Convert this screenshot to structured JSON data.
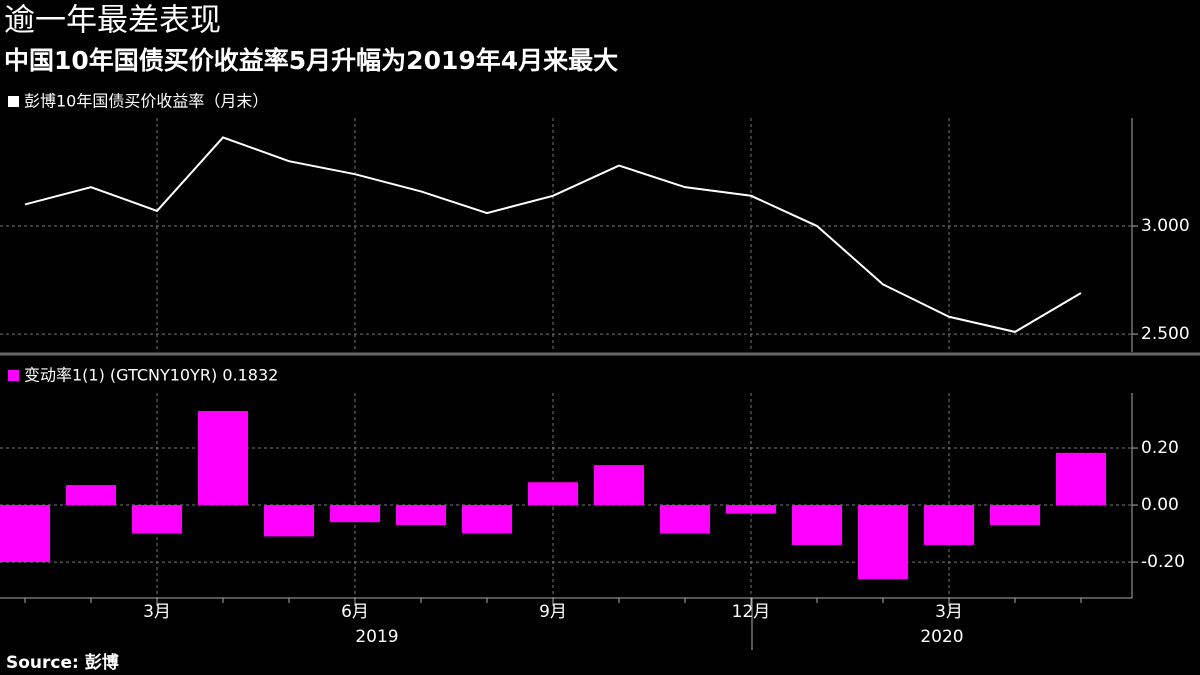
{
  "title": "逾一年最差表现",
  "subtitle": "中国10年国债买价收益率5月升幅为2019年4月来最大",
  "source": "Source: 彭博",
  "chart_data": [
    {
      "type": "line",
      "series": [
        {
          "name": "彭博10年国债买价收益率（月末）",
          "color": "#ffffff",
          "values": [
            3.1,
            3.18,
            3.07,
            3.41,
            3.3,
            3.24,
            3.16,
            3.06,
            3.14,
            3.28,
            3.18,
            3.14,
            3.0,
            2.73,
            2.58,
            2.51,
            2.69
          ]
        }
      ],
      "ylim": [
        2.417,
        3.5
      ],
      "yticks": [
        {
          "value": 2.5,
          "label": "2.500"
        },
        {
          "value": 3,
          "label": "3.000"
        }
      ],
      "grid": true
    },
    {
      "type": "bar",
      "categories": [
        null,
        null,
        "3月",
        null,
        null,
        "6月",
        null,
        null,
        "9月",
        null,
        null,
        "12月",
        null,
        null,
        "3月",
        null,
        null
      ],
      "x_groups": [
        "2019",
        "2020"
      ],
      "series": [
        {
          "name": "变动率1(1) (GTCNY10YR) 0.1832",
          "color": "#ff00ff",
          "values": [
            -0.2,
            0.07,
            -0.1,
            0.33,
            -0.11,
            -0.06,
            -0.07,
            -0.1,
            0.08,
            0.14,
            -0.1,
            -0.03,
            -0.14,
            -0.26,
            -0.14,
            -0.07,
            0.1832
          ]
        }
      ],
      "ylim": [
        -0.326,
        0.393
      ],
      "yticks": [
        {
          "value": -0.2,
          "label": "‑0.20"
        },
        {
          "value": 0,
          "label": "0.00"
        },
        {
          "value": 0.2,
          "label": "0.20"
        }
      ],
      "grid": true
    }
  ]
}
